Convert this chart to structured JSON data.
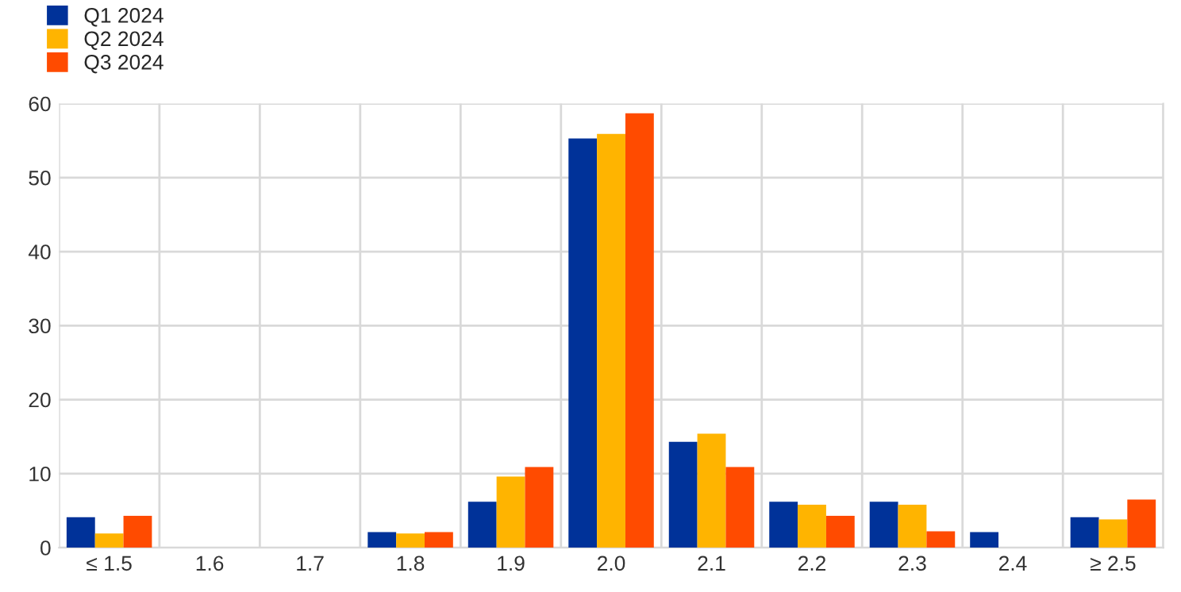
{
  "chart_data": {
    "type": "bar",
    "categories": [
      "≤ 1.5",
      "1.6",
      "1.7",
      "1.8",
      "1.9",
      "2.0",
      "2.1",
      "2.2",
      "2.3",
      "2.4",
      "≥ 2.5"
    ],
    "series": [
      {
        "name": "Q1 2024",
        "color": "#003299",
        "values": [
          4.1,
          0,
          0,
          2.1,
          6.2,
          55.3,
          14.3,
          6.2,
          6.2,
          2.1,
          4.1
        ]
      },
      {
        "name": "Q2 2024",
        "color": "#ffb400",
        "values": [
          1.9,
          0,
          0,
          1.9,
          9.6,
          55.9,
          15.4,
          5.8,
          5.8,
          0,
          3.8
        ]
      },
      {
        "name": "Q3 2024",
        "color": "#ff4b00",
        "values": [
          4.3,
          0,
          0,
          2.1,
          10.9,
          58.7,
          10.9,
          4.3,
          2.2,
          0,
          6.5
        ]
      }
    ],
    "ylim": [
      0,
      60
    ],
    "yticks": [
      0,
      10,
      20,
      30,
      40,
      50,
      60
    ],
    "grid": true,
    "legend": "top left"
  }
}
